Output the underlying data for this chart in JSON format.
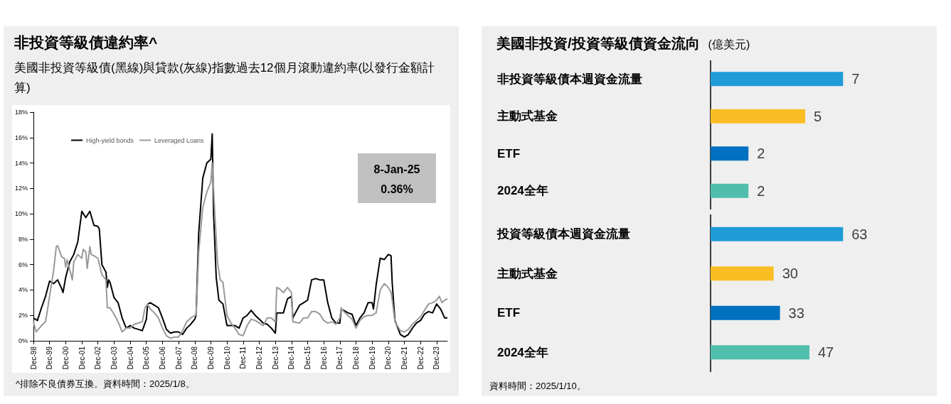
{
  "chart_data": [
    {
      "type": "line",
      "title": "非投資等級債違約率^",
      "subtitle": "美國非投資等級債(黑線)與貸款(灰線)指數過去12個月滾動違約率(以發行金額計算)",
      "xlim": [
        "1998-12",
        "2024-08"
      ],
      "xticks": [
        {
          "value": "1998-12",
          "label": "Dec-98"
        },
        {
          "value": "1999-12",
          "label": "Dec-99"
        },
        {
          "value": "2000-12",
          "label": "Dec-00"
        },
        {
          "value": "2001-12",
          "label": "Dec-01"
        },
        {
          "value": "2002-12",
          "label": "Dec-02"
        },
        {
          "value": "2003-12",
          "label": "Dec-03"
        },
        {
          "value": "2004-12",
          "label": "Dec-04"
        },
        {
          "value": "2005-12",
          "label": "Dec-05"
        },
        {
          "value": "2006-12",
          "label": "Dec-06"
        },
        {
          "value": "2007-12",
          "label": "Dec-07"
        },
        {
          "value": "2008-12",
          "label": "Dec-08"
        },
        {
          "value": "2009-12",
          "label": "Dec-09"
        },
        {
          "value": "2010-12",
          "label": "Dec-10"
        },
        {
          "value": "2011-12",
          "label": "Dec-11"
        },
        {
          "value": "2012-12",
          "label": "Dec-12"
        },
        {
          "value": "2013-12",
          "label": "Dec-13"
        },
        {
          "value": "2014-12",
          "label": "Dec-14"
        },
        {
          "value": "2015-12",
          "label": "Dec-15"
        },
        {
          "value": "2016-12",
          "label": "Dec-16"
        },
        {
          "value": "2017-12",
          "label": "Dec-17"
        },
        {
          "value": "2018-12",
          "label": "Dec-18"
        },
        {
          "value": "2019-12",
          "label": "Dec-19"
        },
        {
          "value": "2020-12",
          "label": "Dec-20"
        },
        {
          "value": "2021-12",
          "label": "Dec-21"
        },
        {
          "value": "2022-12",
          "label": "Dec-22"
        },
        {
          "value": "2023-12",
          "label": "Dec-23"
        }
      ],
      "ylim": [
        0,
        18
      ],
      "yticks": [
        {
          "value": 0,
          "label": "0%"
        },
        {
          "value": 2,
          "label": "2%"
        },
        {
          "value": 4,
          "label": "4%"
        },
        {
          "value": 6,
          "label": "6%"
        },
        {
          "value": 8,
          "label": "8%"
        },
        {
          "value": 10,
          "label": "10%"
        },
        {
          "value": 12,
          "label": "12%"
        },
        {
          "value": 14,
          "label": "14%"
        },
        {
          "value": 16,
          "label": "16%"
        },
        {
          "value": 18,
          "label": "18%"
        }
      ],
      "grid": false,
      "legend": "top left",
      "marker": "none",
      "series": [
        {
          "name": "High-yield bonds",
          "color": "#000000",
          "x": [
            "1998-12",
            "1999-03",
            "1999-06",
            "1999-09",
            "1999-12",
            "2000-03",
            "2000-06",
            "2000-09",
            "2000-10",
            "2000-12",
            "2001-03",
            "2001-06",
            "2001-09",
            "2001-12",
            "2002-03",
            "2002-06",
            "2002-09",
            "2002-12",
            "2003-01",
            "2003-03",
            "2003-06",
            "2003-07",
            "2003-08",
            "2003-09",
            "2003-12",
            "2004-03",
            "2004-06",
            "2004-09",
            "2004-12",
            "2005-03",
            "2005-06",
            "2005-09",
            "2005-12",
            "2006-01",
            "2006-03",
            "2006-06",
            "2006-09",
            "2006-12",
            "2007-03",
            "2007-06",
            "2007-09",
            "2007-12",
            "2008-03",
            "2008-06",
            "2008-09",
            "2008-12",
            "2009-01",
            "2009-03",
            "2009-06",
            "2009-09",
            "2009-12",
            "2010-01",
            "2010-02",
            "2010-04",
            "2010-06",
            "2010-09",
            "2010-12",
            "2011-03",
            "2011-06",
            "2011-09",
            "2011-12",
            "2012-03",
            "2012-06",
            "2012-09",
            "2012-12",
            "2013-03",
            "2013-06",
            "2013-09",
            "2013-12",
            "2014-01",
            "2014-03",
            "2014-06",
            "2014-09",
            "2014-12",
            "2015-01",
            "2015-03",
            "2015-06",
            "2015-09",
            "2015-12",
            "2016-03",
            "2016-06",
            "2016-09",
            "2016-12",
            "2017-03",
            "2017-06",
            "2017-09",
            "2017-12",
            "2018-01",
            "2018-03",
            "2018-06",
            "2018-09",
            "2018-12",
            "2019-03",
            "2019-06",
            "2019-09",
            "2019-12",
            "2020-01",
            "2020-03",
            "2020-06",
            "2020-09",
            "2020-12",
            "2021-02",
            "2021-03",
            "2021-05",
            "2021-09",
            "2021-12",
            "2022-03",
            "2022-06",
            "2022-09",
            "2022-12",
            "2023-03",
            "2023-06",
            "2023-09",
            "2023-12",
            "2024-03",
            "2024-06",
            "2024-08"
          ],
          "values": [
            1.8,
            1.6,
            2.6,
            3.5,
            4.7,
            4.5,
            4.8,
            4.1,
            3.8,
            5.0,
            6.2,
            6.8,
            7.8,
            10.2,
            9.7,
            10.2,
            9.1,
            9.0,
            8.8,
            6.0,
            5.4,
            4.2,
            4.8,
            4.6,
            3.4,
            3.0,
            1.8,
            1.0,
            1.2,
            1.0,
            0.9,
            0.8,
            1.7,
            2.9,
            3.0,
            2.8,
            2.6,
            1.8,
            0.9,
            0.6,
            0.7,
            0.7,
            0.5,
            1.0,
            1.3,
            1.7,
            2.0,
            8.5,
            12.8,
            14.0,
            14.3,
            16.3,
            10.0,
            5.0,
            3.2,
            2.9,
            1.2,
            1.2,
            1.2,
            1.0,
            1.8,
            2.0,
            2.4,
            2.0,
            1.7,
            1.4,
            1.3,
            1.0,
            0.6,
            2.2,
            2.2,
            2.2,
            3.3,
            3.5,
            1.8,
            2.2,
            2.8,
            3.0,
            3.2,
            4.8,
            4.9,
            4.8,
            4.8,
            3.0,
            1.8,
            1.4,
            1.4,
            2.5,
            2.4,
            2.2,
            2.1,
            1.2,
            1.8,
            2.2,
            3.0,
            3.0,
            2.5,
            4.4,
            6.5,
            6.4,
            6.8,
            6.7,
            4.5,
            1.6,
            0.5,
            0.3,
            0.5,
            1.0,
            1.4,
            1.6,
            2.1,
            2.3,
            2.2,
            2.9,
            2.5,
            1.8,
            1.8
          ]
        },
        {
          "name": "Leveraged Loans",
          "color": "#999999",
          "x": [
            "1998-12",
            "1999-02",
            "1999-06",
            "1999-09",
            "1999-11",
            "2000-01",
            "2000-03",
            "2000-05",
            "2000-06",
            "2000-09",
            "2000-11",
            "2000-12",
            "2001-01",
            "2001-03",
            "2001-05",
            "2001-06",
            "2001-09",
            "2001-12",
            "2002-01",
            "2002-03",
            "2002-04",
            "2002-06",
            "2002-07",
            "2002-09",
            "2002-12",
            "2003-03",
            "2003-06",
            "2003-07",
            "2003-09",
            "2003-12",
            "2004-03",
            "2004-06",
            "2004-09",
            "2004-12",
            "2005-03",
            "2005-06",
            "2005-09",
            "2005-11",
            "2006-01",
            "2006-03",
            "2006-06",
            "2006-09",
            "2006-12",
            "2007-03",
            "2007-06",
            "2007-09",
            "2007-12",
            "2008-03",
            "2008-06",
            "2008-09",
            "2008-12",
            "2009-01",
            "2009-03",
            "2009-06",
            "2009-09",
            "2009-12",
            "2010-01",
            "2010-03",
            "2010-05",
            "2010-07",
            "2010-09",
            "2010-12",
            "2011-03",
            "2011-06",
            "2011-09",
            "2011-12",
            "2012-03",
            "2012-06",
            "2012-09",
            "2012-12",
            "2013-03",
            "2013-06",
            "2013-09",
            "2013-12",
            "2014-01",
            "2014-03",
            "2014-06",
            "2014-09",
            "2014-12",
            "2015-01",
            "2015-06",
            "2015-09",
            "2015-12",
            "2016-03",
            "2016-06",
            "2016-09",
            "2016-12",
            "2017-03",
            "2017-06",
            "2017-09",
            "2017-12",
            "2018-01",
            "2018-03",
            "2018-06",
            "2018-09",
            "2018-12",
            "2019-03",
            "2019-06",
            "2019-09",
            "2019-12",
            "2020-03",
            "2020-06",
            "2020-09",
            "2020-12",
            "2021-02",
            "2021-03",
            "2021-05",
            "2021-09",
            "2021-12",
            "2022-03",
            "2022-06",
            "2022-09",
            "2022-12",
            "2023-03",
            "2023-06",
            "2023-09",
            "2023-12",
            "2024-02",
            "2024-04",
            "2024-06",
            "2024-08"
          ],
          "values": [
            1.5,
            0.7,
            1.2,
            1.5,
            2.8,
            4.2,
            5.5,
            7.4,
            7.5,
            6.6,
            6.5,
            5.8,
            6.4,
            5.6,
            4.8,
            6.2,
            6.8,
            6.5,
            7.2,
            7.0,
            5.7,
            7.4,
            6.8,
            6.7,
            6.5,
            5.2,
            4.8,
            2.6,
            2.6,
            2.1,
            1.5,
            0.7,
            1.0,
            1.0,
            1.3,
            1.4,
            1.5,
            2.6,
            2.9,
            2.5,
            2.2,
            1.8,
            1.0,
            0.4,
            0.2,
            0.3,
            0.3,
            0.8,
            1.5,
            1.8,
            2.0,
            2.0,
            7.0,
            10.5,
            11.7,
            12.5,
            14.0,
            10.0,
            6.2,
            4.8,
            4.6,
            2.0,
            1.4,
            1.0,
            0.5,
            0.4,
            1.2,
            1.7,
            1.6,
            1.4,
            1.2,
            1.8,
            1.8,
            1.5,
            4.2,
            4.1,
            3.8,
            4.2,
            3.8,
            1.5,
            1.4,
            1.8,
            1.8,
            2.3,
            2.3,
            2.1,
            1.6,
            1.4,
            1.5,
            1.3,
            1.8,
            2.6,
            2.3,
            2.0,
            1.7,
            1.0,
            1.6,
            1.9,
            2.0,
            2.0,
            2.2,
            4.0,
            4.5,
            4.2,
            3.8,
            3.2,
            1.5,
            0.8,
            0.7,
            0.9,
            1.3,
            1.6,
            1.9,
            2.4,
            2.9,
            3.0,
            3.2,
            3.5,
            3.0,
            3.2,
            3.3
          ]
        }
      ],
      "annotations": [
        "8-Jan-25",
        "0.36%",
        "^排除不良債券互換。資料時間：2025/1/8。"
      ]
    },
    {
      "type": "bar",
      "orientation": "horizontal",
      "title": "美國非投資/投資等級債資金流向",
      "subtitle": "(億美元)",
      "categories": [
        "非投資等級債本週資金流量",
        "主動式基金",
        "ETF",
        "2024全年"
      ],
      "values": [
        7,
        5,
        2,
        2
      ],
      "colors": [
        "#1f9bd7",
        "#fbbd24",
        "#0070c0",
        "#4fbeac"
      ],
      "data_labels": true,
      "tick_labels": "y"
    },
    {
      "type": "bar",
      "orientation": "horizontal",
      "categories": [
        "投資等級債本週資金流量",
        "主動式基金",
        "ETF",
        "2024全年"
      ],
      "values": [
        63,
        30,
        33,
        47
      ],
      "colors": [
        "#1f9bd7",
        "#fbbd24",
        "#0070c0",
        "#4fbeac"
      ],
      "data_labels": true,
      "tick_labels": "y",
      "annotations": [
        "資料時間：2025/1/10。"
      ]
    }
  ]
}
